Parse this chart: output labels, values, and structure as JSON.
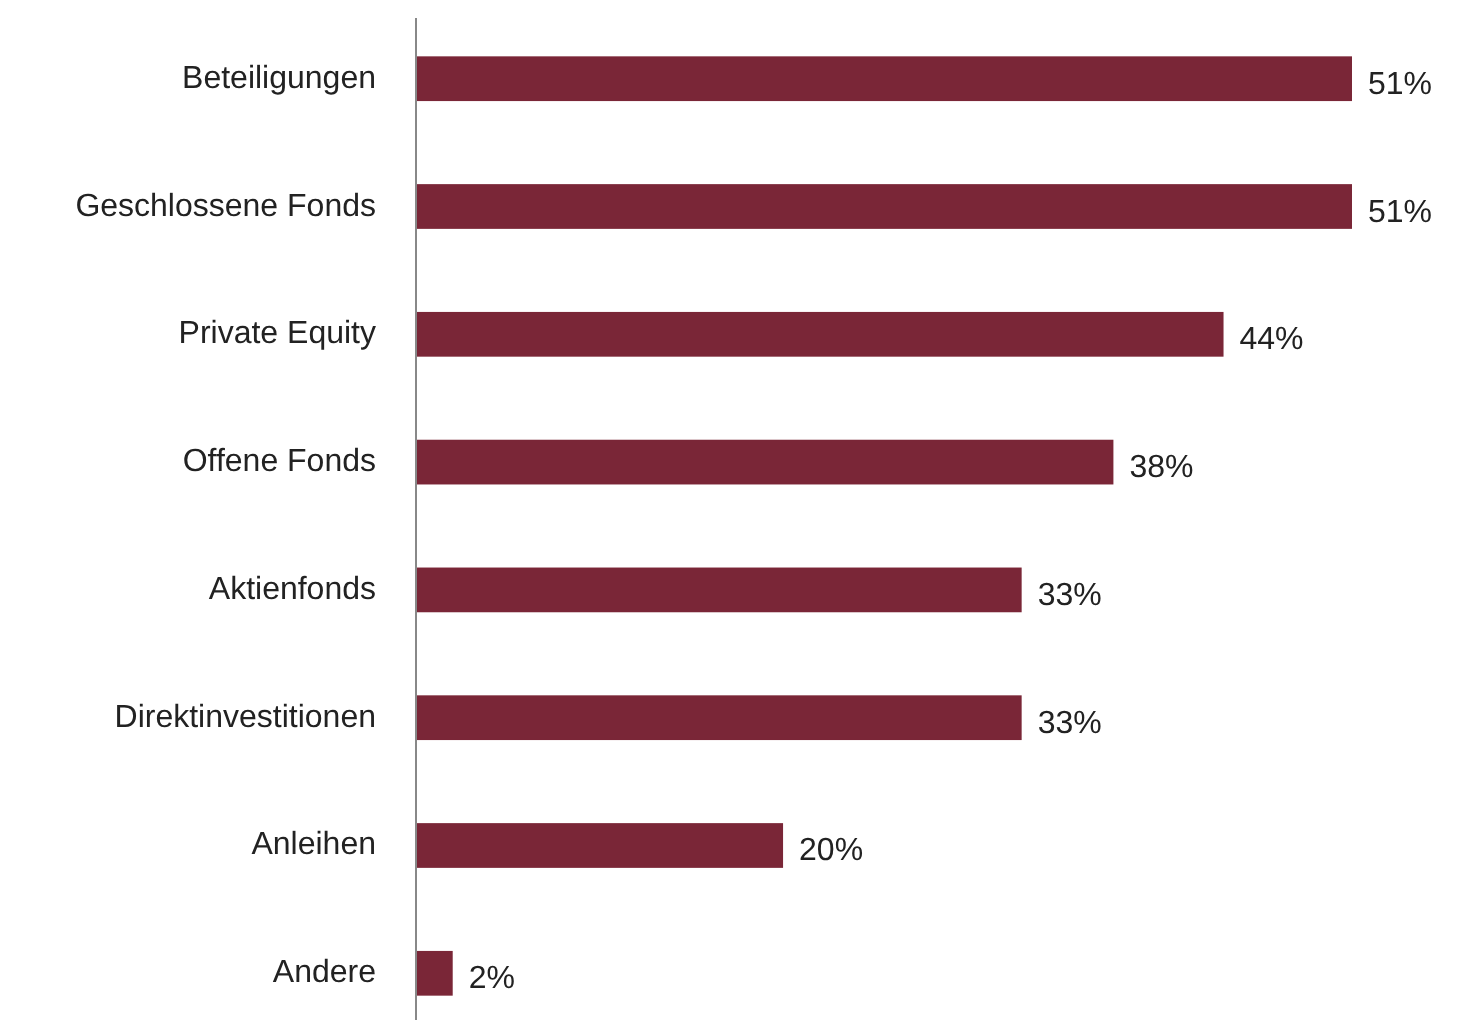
{
  "chart_data": {
    "type": "bar",
    "orientation": "horizontal",
    "categories": [
      "Beteiligungen",
      "Geschlossene Fonds",
      "Private Equity",
      "Offene Fonds",
      "Aktienfonds",
      "Direktinvestitionen",
      "Anleihen",
      "Andere"
    ],
    "values": [
      51,
      51,
      44,
      38,
      33,
      33,
      20,
      2
    ],
    "value_labels": [
      "51%",
      "51%",
      "44%",
      "38%",
      "33%",
      "33%",
      "20%",
      "2%"
    ],
    "color": "#7a2637"
  }
}
